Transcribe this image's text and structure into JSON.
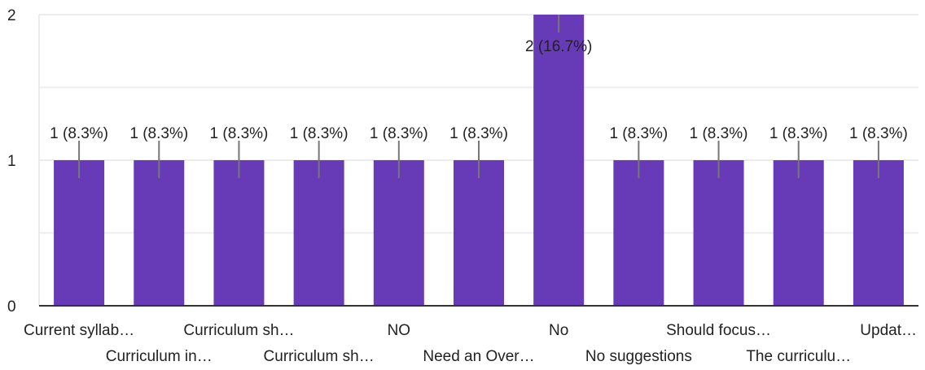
{
  "colors": {
    "bar": "#673ab7",
    "grid": "#ececec",
    "axis": "#333333",
    "leader": "#777777",
    "text": "#222222"
  },
  "chart_data": {
    "type": "bar",
    "title": "",
    "xlabel": "",
    "ylabel": "",
    "ylim": [
      0,
      2
    ],
    "grid": true,
    "y_ticks": [
      "0",
      "1",
      "2"
    ],
    "categories": [
      "Current syllab…",
      "Curriculum in…",
      "Curriculum sh…",
      "Curriculum sh…",
      "NO",
      "Need an Over…",
      "No",
      "No suggestions",
      "Should focus…",
      "The curriculu…",
      "Updat…"
    ],
    "values": [
      1,
      1,
      1,
      1,
      1,
      1,
      2,
      1,
      1,
      1,
      1
    ],
    "data_labels": [
      "1 (8.3%)",
      "1 (8.3%)",
      "1 (8.3%)",
      "1 (8.3%)",
      "1 (8.3%)",
      "1 (8.3%)",
      "2 (16.7%)",
      "1 (8.3%)",
      "1 (8.3%)",
      "1 (8.3%)",
      "1 (8.3%)"
    ]
  }
}
